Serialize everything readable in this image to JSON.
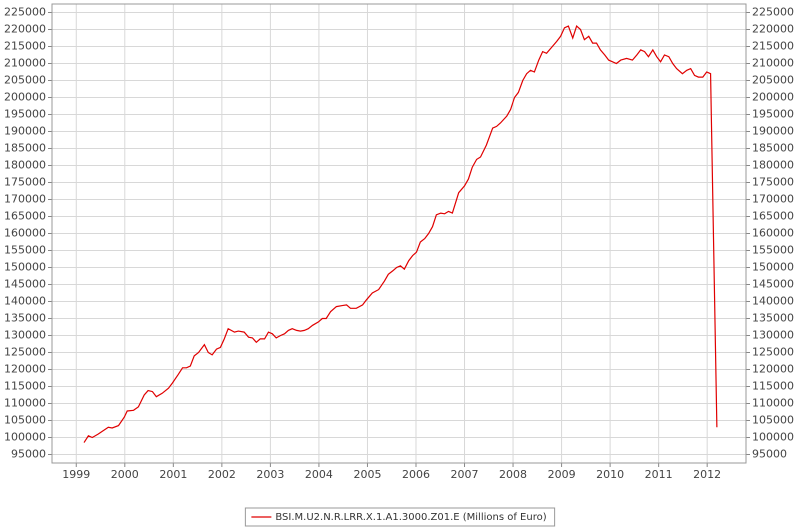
{
  "chart_data": {
    "type": "line",
    "x": [
      1999.16,
      1999.25,
      1999.33,
      1999.45,
      1999.66,
      1999.74,
      1999.87,
      1999.99,
      2000.05,
      2000.18,
      2000.28,
      2000.4,
      2000.48,
      2000.57,
      2000.65,
      2000.77,
      2000.9,
      2000.98,
      2001.1,
      2001.19,
      2001.27,
      2001.35,
      2001.43,
      2001.52,
      2001.64,
      2001.72,
      2001.8,
      2001.89,
      2001.97,
      2002.05,
      2002.13,
      2002.26,
      2002.34,
      2002.46,
      2002.55,
      2002.63,
      2002.71,
      2002.79,
      2002.88,
      2002.96,
      2003.04,
      2003.12,
      2003.21,
      2003.29,
      2003.37,
      2003.45,
      2003.54,
      2003.62,
      2003.7,
      2003.78,
      2003.87,
      2003.99,
      2004.07,
      2004.15,
      2004.24,
      2004.36,
      2004.48,
      2004.57,
      2004.65,
      2004.77,
      2004.9,
      2004.98,
      2005.1,
      2005.23,
      2005.35,
      2005.43,
      2005.52,
      2005.6,
      2005.68,
      2005.76,
      2005.85,
      2005.93,
      2006.01,
      2006.09,
      2006.18,
      2006.26,
      2006.34,
      2006.42,
      2006.51,
      2006.59,
      2006.67,
      2006.75,
      2006.88,
      2007.0,
      2007.08,
      2007.16,
      2007.25,
      2007.33,
      2007.45,
      2007.58,
      2007.66,
      2007.74,
      2007.87,
      2007.95,
      2008.03,
      2008.11,
      2008.2,
      2008.28,
      2008.36,
      2008.44,
      2008.53,
      2008.61,
      2008.69,
      2008.81,
      2008.9,
      2008.98,
      2009.06,
      2009.14,
      2009.23,
      2009.31,
      2009.39,
      2009.47,
      2009.56,
      2009.64,
      2009.72,
      2009.8,
      2009.89,
      2009.97,
      2010.05,
      2010.13,
      2010.22,
      2010.34,
      2010.46,
      2010.55,
      2010.63,
      2010.71,
      2010.79,
      2010.88,
      2010.96,
      2011.04,
      2011.12,
      2011.21,
      2011.29,
      2011.37,
      2011.49,
      2011.58,
      2011.66,
      2011.74,
      2011.82,
      2011.91,
      2011.99,
      2012.07,
      2012.2
    ],
    "series": [
      {
        "name": "BSI.M.U2.N.R.LRR.X.1.A1.3000.Z01.E (Millions of Euro)",
        "color": "#e00000",
        "values": [
          98500,
          100500,
          100000,
          101000,
          103000,
          102800,
          103500,
          106000,
          107800,
          108000,
          109000,
          112500,
          113800,
          113500,
          112000,
          113000,
          114500,
          116000,
          118500,
          120500,
          120500,
          121000,
          124000,
          125000,
          127300,
          125000,
          124300,
          126000,
          126500,
          129000,
          132000,
          131000,
          131300,
          131000,
          129500,
          129300,
          128000,
          129000,
          129000,
          131000,
          130500,
          129300,
          130000,
          130500,
          131500,
          132000,
          131500,
          131300,
          131500,
          132000,
          133000,
          134000,
          135000,
          135000,
          137000,
          138500,
          138800,
          139000,
          138000,
          138000,
          139000,
          140500,
          142500,
          143500,
          146000,
          148000,
          149000,
          150000,
          150500,
          149500,
          152000,
          153500,
          154500,
          157500,
          158500,
          160000,
          162000,
          165500,
          166000,
          165800,
          166500,
          166000,
          172000,
          174000,
          176000,
          179500,
          181800,
          182500,
          186000,
          191000,
          191500,
          192500,
          194500,
          196500,
          200000,
          201500,
          205000,
          207000,
          208000,
          207500,
          211000,
          213500,
          213000,
          215000,
          216500,
          218000,
          220500,
          221000,
          217500,
          221000,
          220000,
          217000,
          218000,
          216000,
          216000,
          214000,
          212500,
          211000,
          210500,
          210000,
          211000,
          211500,
          211000,
          212500,
          214000,
          213500,
          212000,
          214000,
          212000,
          210500,
          212500,
          212000,
          210000,
          208500,
          207000,
          208000,
          208500,
          206500,
          206000,
          206000,
          207500,
          207000,
          103000
        ]
      }
    ],
    "xlim": [
      1998.5,
      2012.8
    ],
    "xticks": [
      1999,
      2000,
      2001,
      2002,
      2003,
      2004,
      2005,
      2006,
      2007,
      2008,
      2009,
      2010,
      2011,
      2012
    ],
    "ylim": [
      92500,
      227500
    ],
    "yticks": [
      95000,
      100000,
      105000,
      110000,
      115000,
      120000,
      125000,
      130000,
      135000,
      140000,
      145000,
      150000,
      155000,
      160000,
      165000,
      170000,
      175000,
      180000,
      185000,
      190000,
      195000,
      200000,
      205000,
      210000,
      215000,
      220000,
      225000
    ],
    "y2lim": [
      92500,
      227500
    ],
    "y2ticks": [
      95000,
      100000,
      105000,
      110000,
      115000,
      120000,
      125000,
      130000,
      135000,
      140000,
      145000,
      150000,
      155000,
      160000,
      165000,
      170000,
      175000,
      180000,
      185000,
      190000,
      195000,
      200000,
      205000,
      210000,
      215000,
      220000,
      225000
    ],
    "grid": true,
    "legend": "bottom"
  }
}
